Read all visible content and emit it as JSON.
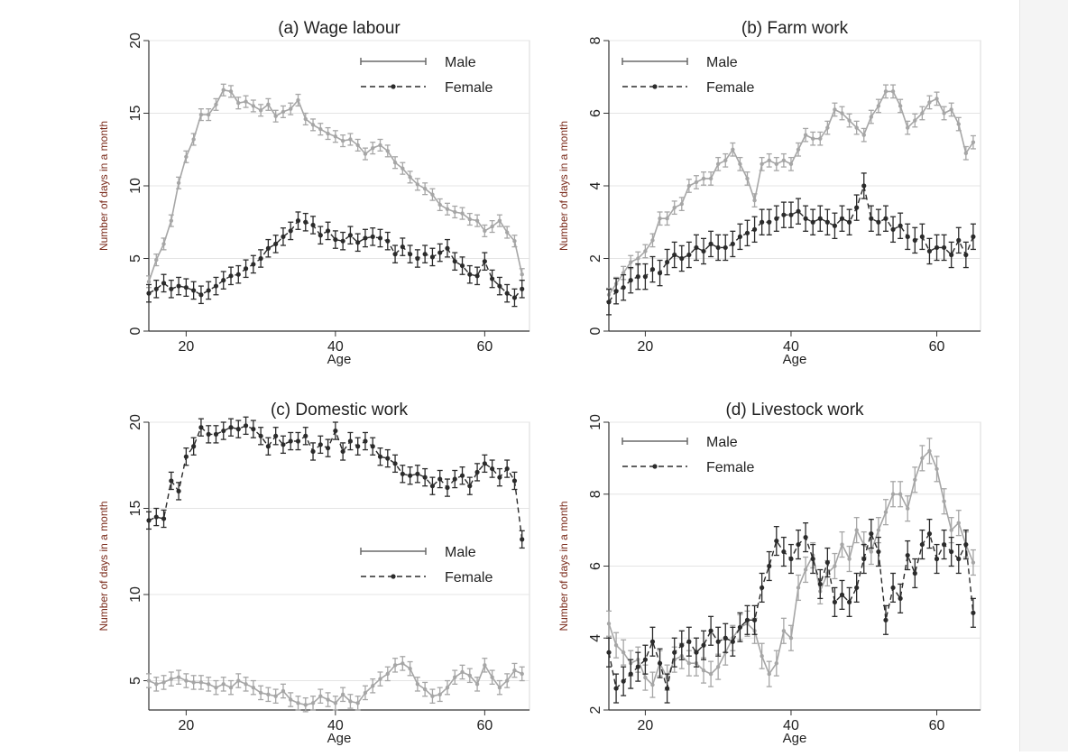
{
  "colors": {
    "male": "#a6a6a6",
    "female": "#2b2b2b",
    "axis": "#333333",
    "grid": "#e4e4e4",
    "axis_label": "#7a2a1a"
  },
  "chart_data": [
    {
      "type": "line",
      "title": "(a) Wage labour",
      "xlabel": "Age",
      "ylabel": "Number of days in a month",
      "xlim": [
        15,
        66
      ],
      "ylim": [
        0,
        20
      ],
      "xticks": [
        20,
        40,
        60
      ],
      "yticks": [
        0,
        5,
        10,
        15,
        20
      ],
      "legend": {
        "position": "top-right"
      },
      "x": [
        15,
        16,
        17,
        18,
        19,
        20,
        21,
        22,
        23,
        24,
        25,
        26,
        27,
        28,
        29,
        30,
        31,
        32,
        33,
        34,
        35,
        36,
        37,
        38,
        39,
        40,
        41,
        42,
        43,
        44,
        45,
        46,
        47,
        48,
        49,
        50,
        51,
        52,
        53,
        54,
        55,
        56,
        57,
        58,
        59,
        60,
        61,
        62,
        63,
        64,
        65
      ],
      "series": [
        {
          "name": "Male",
          "style": "solid",
          "values": [
            3.4,
            4.9,
            6.0,
            7.6,
            10.2,
            12.0,
            13.2,
            14.9,
            14.9,
            15.6,
            16.6,
            16.5,
            15.7,
            15.8,
            15.5,
            15.2,
            15.6,
            14.8,
            15.1,
            15.3,
            15.9,
            14.6,
            14.2,
            13.9,
            13.6,
            13.4,
            13.1,
            13.2,
            12.8,
            12.2,
            12.6,
            12.8,
            12.4,
            11.6,
            11.2,
            10.6,
            10.1,
            9.8,
            9.4,
            8.7,
            8.4,
            8.2,
            8.1,
            7.7,
            7.6,
            6.9,
            7.2,
            7.6,
            6.8,
            6.2,
            3.9
          ],
          "error": 0.4
        },
        {
          "name": "Female",
          "style": "dashed",
          "values": [
            2.6,
            2.9,
            3.3,
            2.9,
            3.1,
            3.0,
            2.8,
            2.5,
            2.8,
            3.1,
            3.5,
            3.8,
            3.9,
            4.3,
            4.6,
            5.0,
            5.7,
            6.0,
            6.5,
            6.9,
            7.6,
            7.5,
            7.3,
            6.6,
            6.9,
            6.3,
            6.2,
            6.6,
            6.1,
            6.4,
            6.5,
            6.4,
            6.2,
            5.3,
            5.8,
            5.3,
            5.0,
            5.3,
            5.1,
            5.4,
            5.7,
            4.8,
            4.5,
            3.9,
            3.8,
            4.8,
            3.6,
            3.1,
            2.6,
            2.3,
            2.9
          ],
          "error": 0.6
        }
      ]
    },
    {
      "type": "line",
      "title": "(b) Farm work",
      "xlabel": "Age",
      "ylabel": "Number of days in a month",
      "xlim": [
        15,
        66
      ],
      "ylim": [
        0,
        8
      ],
      "xticks": [
        20,
        40,
        60
      ],
      "yticks": [
        0,
        2,
        4,
        6,
        8
      ],
      "legend": {
        "position": "top-left"
      },
      "x": [
        15,
        16,
        17,
        18,
        19,
        20,
        21,
        22,
        23,
        24,
        25,
        26,
        27,
        28,
        29,
        30,
        31,
        32,
        33,
        34,
        35,
        36,
        37,
        38,
        39,
        40,
        41,
        42,
        43,
        44,
        45,
        46,
        47,
        48,
        49,
        50,
        51,
        52,
        53,
        54,
        55,
        56,
        57,
        58,
        59,
        60,
        61,
        62,
        63,
        64,
        65
      ],
      "series": [
        {
          "name": "Male",
          "style": "solid",
          "values": [
            1.0,
            1.3,
            1.6,
            1.9,
            2.0,
            2.2,
            2.5,
            3.1,
            3.1,
            3.4,
            3.5,
            4.0,
            4.1,
            4.2,
            4.2,
            4.6,
            4.7,
            5.0,
            4.6,
            4.2,
            3.6,
            4.6,
            4.7,
            4.6,
            4.7,
            4.6,
            5.0,
            5.4,
            5.3,
            5.3,
            5.6,
            6.1,
            6.0,
            5.8,
            5.6,
            5.4,
            5.9,
            6.2,
            6.6,
            6.6,
            6.2,
            5.6,
            5.8,
            6.0,
            6.3,
            6.4,
            6.0,
            6.1,
            5.7,
            4.9,
            5.2
          ],
          "error": 0.18
        },
        {
          "name": "Female",
          "style": "dashed",
          "values": [
            0.8,
            1.1,
            1.2,
            1.4,
            1.5,
            1.5,
            1.7,
            1.6,
            1.9,
            2.1,
            2.0,
            2.1,
            2.3,
            2.2,
            2.4,
            2.3,
            2.3,
            2.4,
            2.6,
            2.7,
            2.8,
            3.0,
            3.0,
            3.1,
            3.2,
            3.2,
            3.3,
            3.1,
            3.0,
            3.1,
            3.0,
            2.9,
            3.1,
            3.0,
            3.4,
            4.0,
            3.1,
            3.0,
            3.1,
            2.8,
            2.9,
            2.6,
            2.5,
            2.6,
            2.2,
            2.3,
            2.3,
            2.1,
            2.5,
            2.1,
            2.6
          ],
          "error": 0.35
        }
      ]
    },
    {
      "type": "line",
      "title": "(c) Domestic work",
      "xlabel": "Age",
      "ylabel": "Number of days in a month",
      "xlim": [
        15,
        66
      ],
      "ylim": [
        3.3,
        20
      ],
      "xticks": [
        20,
        40,
        60
      ],
      "yticks": [
        5,
        10,
        15,
        20
      ],
      "legend": {
        "position": "middle-right"
      },
      "x": [
        15,
        16,
        17,
        18,
        19,
        20,
        21,
        22,
        23,
        24,
        25,
        26,
        27,
        28,
        29,
        30,
        31,
        32,
        33,
        34,
        35,
        36,
        37,
        38,
        39,
        40,
        41,
        42,
        43,
        44,
        45,
        46,
        47,
        48,
        49,
        50,
        51,
        52,
        53,
        54,
        55,
        56,
        57,
        58,
        59,
        60,
        61,
        62,
        63,
        64,
        65
      ],
      "series": [
        {
          "name": "Male",
          "style": "solid",
          "values": [
            5.0,
            4.8,
            4.9,
            5.1,
            5.2,
            5.0,
            4.9,
            4.9,
            4.8,
            4.6,
            4.8,
            4.6,
            5.0,
            4.8,
            4.6,
            4.3,
            4.2,
            4.1,
            4.4,
            3.9,
            3.7,
            3.6,
            3.7,
            4.1,
            3.9,
            3.7,
            4.2,
            3.8,
            3.7,
            4.3,
            4.7,
            5.1,
            5.4,
            5.9,
            6.0,
            5.7,
            4.8,
            4.5,
            4.1,
            4.2,
            4.6,
            5.2,
            5.5,
            5.3,
            4.8,
            5.9,
            5.2,
            4.6,
            5.0,
            5.6,
            5.4
          ],
          "error": 0.4
        },
        {
          "name": "Female",
          "style": "dashed",
          "values": [
            14.3,
            14.5,
            14.4,
            16.6,
            16.0,
            18.0,
            18.6,
            19.7,
            19.3,
            19.3,
            19.5,
            19.7,
            19.6,
            19.8,
            19.6,
            19.2,
            18.6,
            19.2,
            18.7,
            18.9,
            18.9,
            19.2,
            18.3,
            18.7,
            18.5,
            19.5,
            18.3,
            18.9,
            18.6,
            18.9,
            18.6,
            18.0,
            17.9,
            17.6,
            17.0,
            16.9,
            17.0,
            16.8,
            16.3,
            16.7,
            16.2,
            16.7,
            16.9,
            16.3,
            17.1,
            17.6,
            17.3,
            16.8,
            17.3,
            16.6,
            13.2
          ],
          "error": 0.5
        }
      ]
    },
    {
      "type": "line",
      "title": "(d) Livestock work",
      "xlabel": "Age",
      "ylabel": "Number of days in a month",
      "xlim": [
        15,
        66
      ],
      "ylim": [
        2,
        10
      ],
      "xticks": [
        20,
        40,
        60
      ],
      "yticks": [
        2,
        4,
        6,
        8,
        10
      ],
      "legend": {
        "position": "top-left"
      },
      "x": [
        15,
        16,
        17,
        18,
        19,
        20,
        21,
        22,
        23,
        24,
        25,
        26,
        27,
        28,
        29,
        30,
        31,
        32,
        33,
        34,
        35,
        36,
        37,
        38,
        39,
        40,
        41,
        42,
        43,
        44,
        45,
        46,
        47,
        48,
        49,
        50,
        51,
        52,
        53,
        54,
        55,
        56,
        57,
        58,
        59,
        60,
        61,
        62,
        63,
        64,
        65
      ],
      "series": [
        {
          "name": "Male",
          "style": "solid",
          "values": [
            4.4,
            3.8,
            3.6,
            3.3,
            3.4,
            2.9,
            2.7,
            3.3,
            2.9,
            3.4,
            3.5,
            3.3,
            3.3,
            3.1,
            3.0,
            3.2,
            3.6,
            4.0,
            4.3,
            4.4,
            4.2,
            3.5,
            3.0,
            3.3,
            4.2,
            4.0,
            5.4,
            5.9,
            6.3,
            5.3,
            5.8,
            6.0,
            6.6,
            6.2,
            7.0,
            6.6,
            6.4,
            7.0,
            7.5,
            8.0,
            8.0,
            7.6,
            8.4,
            9.0,
            9.2,
            8.7,
            7.8,
            7.0,
            7.2,
            6.6,
            6.1
          ],
          "error": 0.35
        },
        {
          "name": "Female",
          "style": "dashed",
          "values": [
            3.6,
            2.6,
            2.8,
            3.0,
            3.2,
            3.4,
            3.9,
            3.3,
            2.6,
            3.6,
            3.8,
            3.9,
            3.6,
            3.8,
            4.2,
            3.9,
            4.0,
            3.9,
            4.3,
            4.5,
            4.5,
            5.4,
            6.0,
            6.7,
            6.4,
            6.2,
            6.6,
            6.8,
            6.2,
            5.5,
            6.1,
            5.0,
            5.2,
            5.0,
            5.4,
            6.2,
            6.9,
            6.4,
            4.5,
            5.4,
            5.1,
            6.3,
            5.8,
            6.6,
            6.9,
            6.2,
            6.6,
            6.4,
            6.2,
            6.6,
            4.7
          ],
          "error": 0.4
        }
      ]
    }
  ]
}
